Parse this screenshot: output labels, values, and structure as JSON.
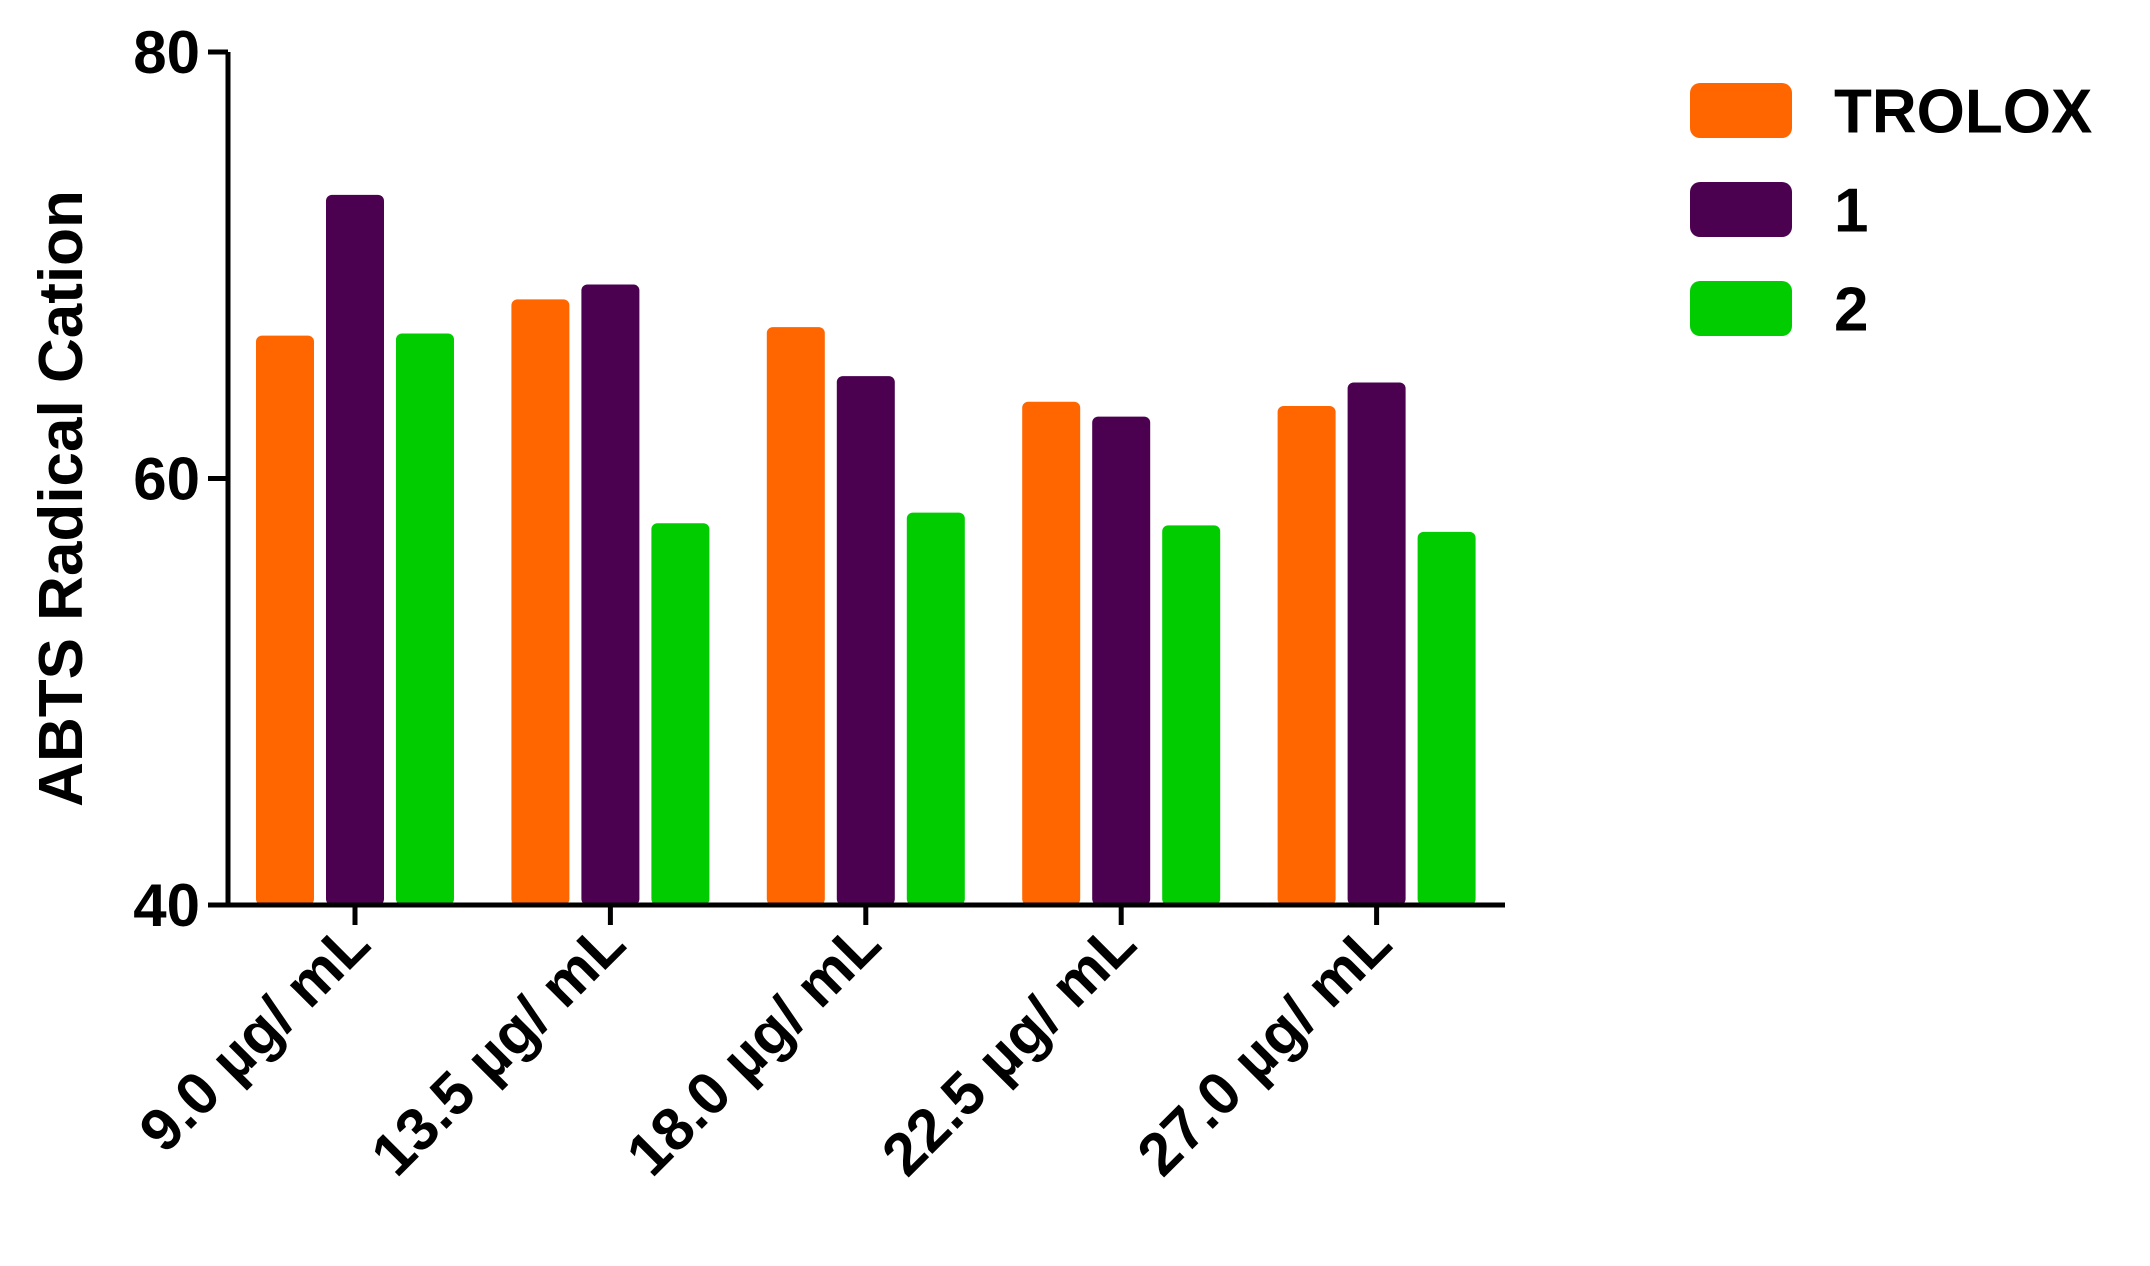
{
  "chart_data": {
    "type": "bar",
    "title": "",
    "xlabel": "",
    "ylabel": "ABTS Radical Cation",
    "ylim": [
      40,
      80
    ],
    "yticks": [
      40,
      60,
      80
    ],
    "categories": [
      "9.0 µg/ mL",
      "13.5 µg/ mL",
      "18.0 µg/ mL",
      "22.5 µg/ mL",
      "27.0 µg/ mL"
    ],
    "series": [
      {
        "name": "TROLOX",
        "color": "#FF6600",
        "values": [
          66.7,
          68.4,
          67.1,
          63.6,
          63.4
        ]
      },
      {
        "name": "1",
        "color": "#4B0050",
        "values": [
          73.3,
          69.1,
          64.8,
          62.9,
          64.5
        ]
      },
      {
        "name": "2",
        "color": "#00CC00",
        "values": [
          66.8,
          57.9,
          58.4,
          57.8,
          57.5
        ]
      }
    ],
    "grid": false,
    "legend": "top-right"
  }
}
